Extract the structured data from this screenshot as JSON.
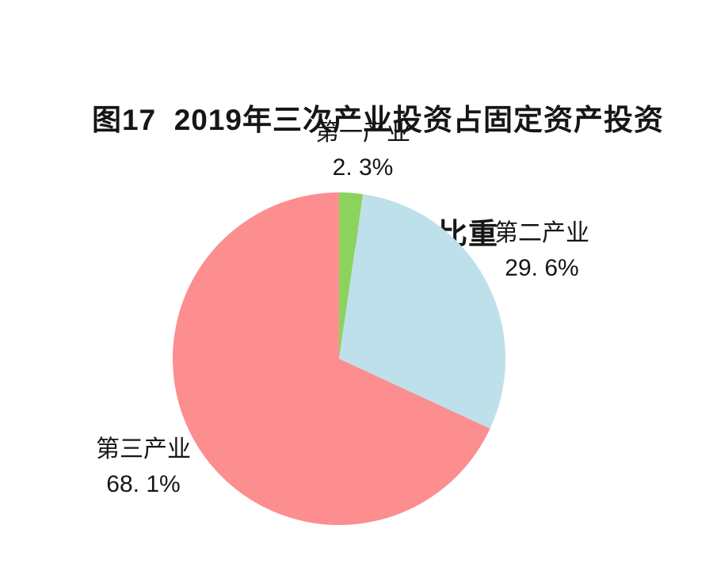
{
  "figure": {
    "title_line1": "图17  2019年三次产业投资占固定资产投资",
    "title_line2": "（不含农户）比重"
  },
  "chart_data": {
    "type": "pie",
    "title": "图17 2019年三次产业投资占固定资产投资（不含农户）比重",
    "start_angle_deg": 0,
    "direction": "clockwise",
    "legend": "none (direct labels around pie)",
    "total": 100,
    "slices": [
      {
        "label": "第一产业",
        "value": 2.3,
        "display": "2. 3%",
        "color": "#8CD35E"
      },
      {
        "label": "第二产业",
        "value": 29.6,
        "display": "29. 6%",
        "color": "#BEE0EB"
      },
      {
        "label": "第三产业",
        "value": 68.1,
        "display": "68. 1%",
        "color": "#FC8E90"
      }
    ]
  }
}
